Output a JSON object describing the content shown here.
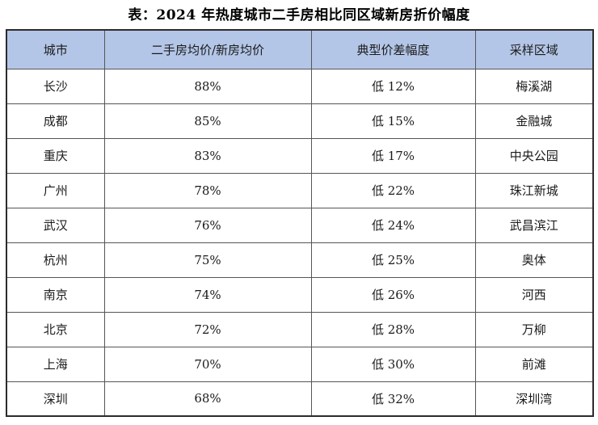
{
  "title": "表：2024 年热度城市二手房相比同区域新房折价幅度",
  "colors": {
    "header_bg": "#b4c6e7",
    "grid_border": "#555555",
    "outer_border": "#2b2b2b",
    "text": "#1a1a1a"
  },
  "table": {
    "headers": {
      "city": "城市",
      "ratio": "二手房均价/新房均价",
      "discount": "典型价差幅度",
      "area": "采样区域"
    },
    "rows": [
      {
        "city": "长沙",
        "ratio": "88%",
        "discount": "低 12%",
        "area": "梅溪湖"
      },
      {
        "city": "成都",
        "ratio": "85%",
        "discount": "低 15%",
        "area": "金融城"
      },
      {
        "city": "重庆",
        "ratio": "83%",
        "discount": "低 17%",
        "area": "中央公园"
      },
      {
        "city": "广州",
        "ratio": "78%",
        "discount": "低 22%",
        "area": "珠江新城"
      },
      {
        "city": "武汉",
        "ratio": "76%",
        "discount": "低 24%",
        "area": "武昌滨江"
      },
      {
        "city": "杭州",
        "ratio": "75%",
        "discount": "低 25%",
        "area": "奥体"
      },
      {
        "city": "南京",
        "ratio": "74%",
        "discount": "低 26%",
        "area": "河西"
      },
      {
        "city": "北京",
        "ratio": "72%",
        "discount": "低 28%",
        "area": "万柳"
      },
      {
        "city": "上海",
        "ratio": "70%",
        "discount": "低 30%",
        "area": "前滩"
      },
      {
        "city": "深圳",
        "ratio": "68%",
        "discount": "低 32%",
        "area": "深圳湾"
      }
    ]
  }
}
